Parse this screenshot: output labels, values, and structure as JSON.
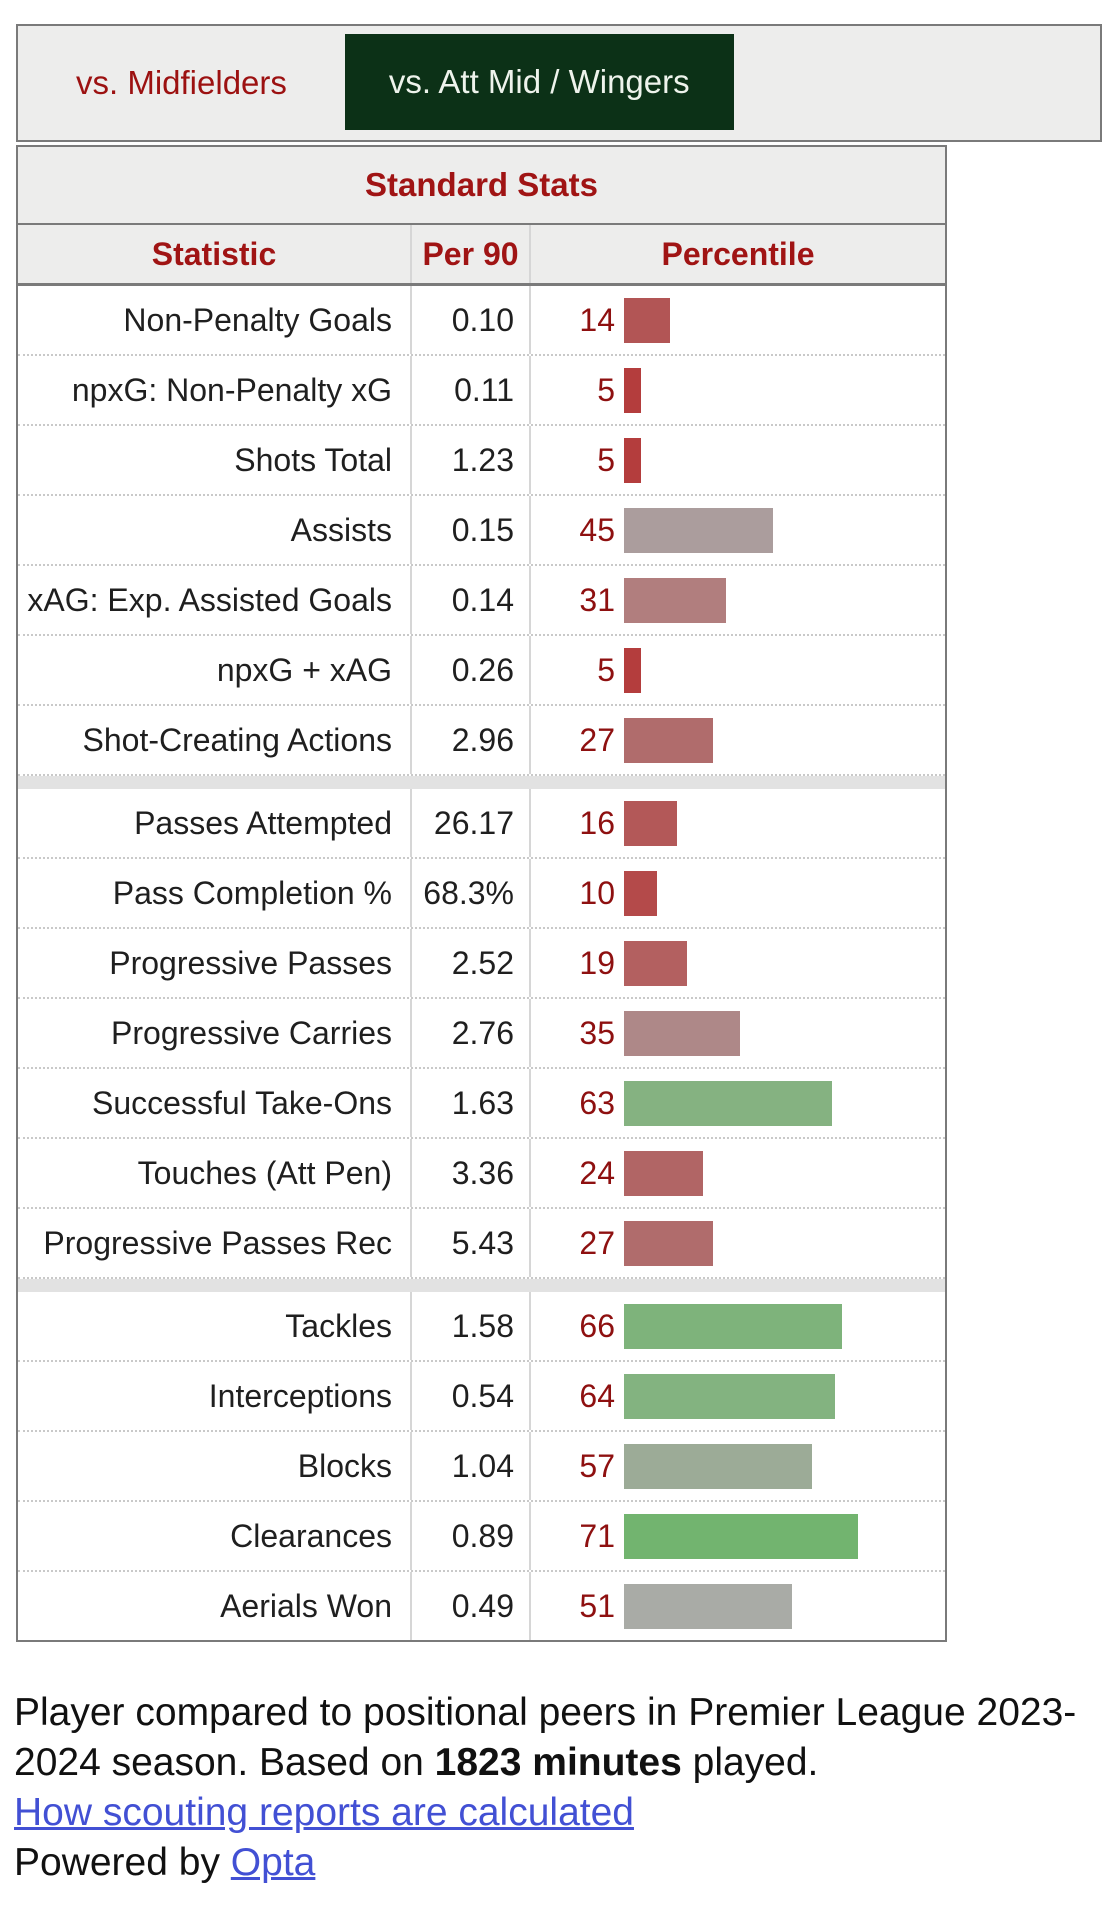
{
  "tabs": [
    {
      "label": "vs. Midfielders",
      "active": false
    },
    {
      "label": "vs. Att Mid / Wingers",
      "active": true
    }
  ],
  "table": {
    "caption": "Standard Stats",
    "columns": {
      "stat": "Statistic",
      "per90": "Per 90",
      "percentile": "Percentile"
    }
  },
  "chart_data": {
    "type": "table",
    "title": "Standard Stats",
    "columns": [
      "Statistic",
      "Per 90",
      "Percentile"
    ],
    "bar_axis": {
      "min": 0,
      "max": 100
    },
    "groups": [
      {
        "rows": [
          {
            "stat": "Non-Penalty Goals",
            "per90": "0.10",
            "percentile": 14,
            "bar_color": "#b25555"
          },
          {
            "stat": "npxG: Non-Penalty xG",
            "per90": "0.11",
            "percentile": 5,
            "bar_color": "#b43d3d"
          },
          {
            "stat": "Shots Total",
            "per90": "1.23",
            "percentile": 5,
            "bar_color": "#b43d3d"
          },
          {
            "stat": "Assists",
            "per90": "0.15",
            "percentile": 45,
            "bar_color": "#ab9d9d"
          },
          {
            "stat": "xAG: Exp. Assisted Goals",
            "per90": "0.14",
            "percentile": 31,
            "bar_color": "#b17e7e"
          },
          {
            "stat": "npxG + xAG",
            "per90": "0.26",
            "percentile": 5,
            "bar_color": "#b43d3d"
          },
          {
            "stat": "Shot-Creating Actions",
            "per90": "2.96",
            "percentile": 27,
            "bar_color": "#b06c6c"
          }
        ]
      },
      {
        "rows": [
          {
            "stat": "Passes Attempted",
            "per90": "26.17",
            "percentile": 16,
            "bar_color": "#b35858"
          },
          {
            "stat": "Pass Completion %",
            "per90": "68.3%",
            "percentile": 10,
            "bar_color": "#b44a4a"
          },
          {
            "stat": "Progressive Passes",
            "per90": "2.52",
            "percentile": 19,
            "bar_color": "#b36060"
          },
          {
            "stat": "Progressive Carries",
            "per90": "2.76",
            "percentile": 35,
            "bar_color": "#ae8888"
          },
          {
            "stat": "Successful Take-Ons",
            "per90": "1.63",
            "percentile": 63,
            "bar_color": "#85b281"
          },
          {
            "stat": "Touches (Att Pen)",
            "per90": "3.36",
            "percentile": 24,
            "bar_color": "#b16565"
          },
          {
            "stat": "Progressive Passes Rec",
            "per90": "5.43",
            "percentile": 27,
            "bar_color": "#b06c6c"
          }
        ]
      },
      {
        "rows": [
          {
            "stat": "Tackles",
            "per90": "1.58",
            "percentile": 66,
            "bar_color": "#7eb37b"
          },
          {
            "stat": "Interceptions",
            "per90": "0.54",
            "percentile": 64,
            "bar_color": "#83b380"
          },
          {
            "stat": "Blocks",
            "per90": "1.04",
            "percentile": 57,
            "bar_color": "#9cab97"
          },
          {
            "stat": "Clearances",
            "per90": "0.89",
            "percentile": 71,
            "bar_color": "#72b46f"
          },
          {
            "stat": "Aerials Won",
            "per90": "0.49",
            "percentile": 51,
            "bar_color": "#a9aba6"
          }
        ]
      }
    ]
  },
  "footer": {
    "text_before_bold": "Player compared to positional peers in Premier League 2023-2024 season. Based on ",
    "bold_text": "1823 minutes",
    "text_after_bold": " played.",
    "calc_link": "How scouting reports are calculated",
    "powered_by_prefix": "Powered by ",
    "opta_link": "Opta"
  },
  "colors": {
    "accent_dark_red": "#a01414",
    "percentile_number_red": "#8e1010",
    "active_tab_green": "#0c3117",
    "panel_gray": "#ededec",
    "link_blue": "#4250d4",
    "separator_gray": "#e2e2e2"
  }
}
